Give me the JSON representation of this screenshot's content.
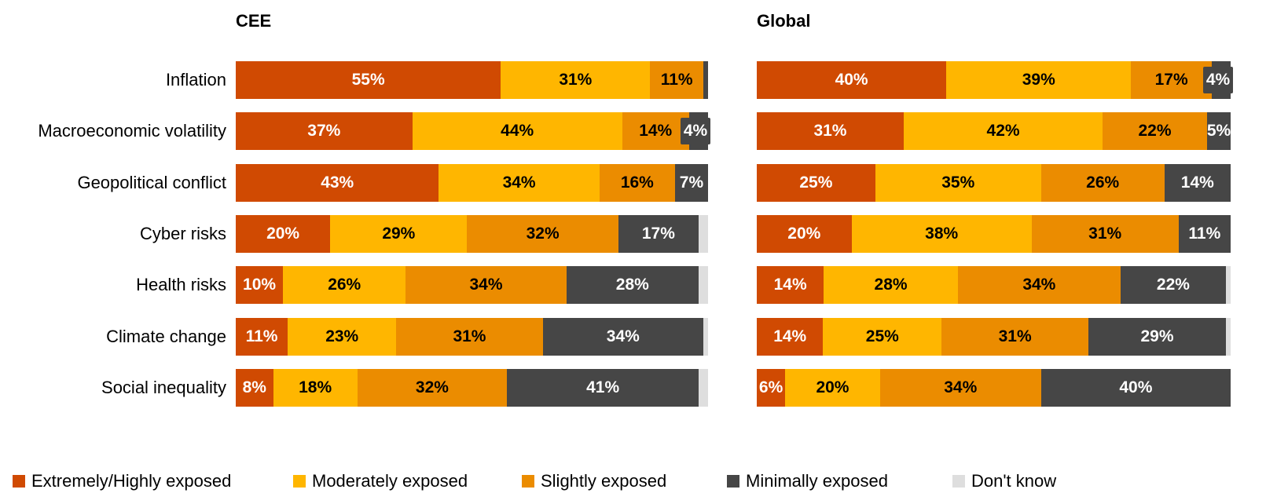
{
  "chart_data": [
    {
      "type": "bar",
      "orientation": "horizontal",
      "stacked": true,
      "title": "CEE",
      "categories": [
        "Inflation",
        "Macroeconomic volatility",
        "Geopolitical conflict",
        "Cyber risks",
        "Health risks",
        "Climate change",
        "Social inequality"
      ],
      "series": [
        {
          "name": "Extremely/Highly exposed",
          "values": [
            55,
            37,
            43,
            20,
            10,
            11,
            8
          ]
        },
        {
          "name": "Moderately exposed",
          "values": [
            31,
            44,
            34,
            29,
            26,
            23,
            18
          ]
        },
        {
          "name": "Slightly exposed",
          "values": [
            11,
            14,
            16,
            32,
            34,
            31,
            32
          ]
        },
        {
          "name": "Minimally exposed",
          "values": [
            1,
            4,
            7,
            17,
            28,
            34,
            41
          ]
        },
        {
          "name": "Don't know",
          "values": [
            0,
            0,
            0,
            2,
            2,
            1,
            2
          ]
        }
      ],
      "labels": [
        [
          "55%",
          "31%",
          "11%",
          "",
          ""
        ],
        [
          "37%",
          "44%",
          "14%",
          "4%",
          ""
        ],
        [
          "43%",
          "34%",
          "16%",
          "7%",
          ""
        ],
        [
          "20%",
          "29%",
          "32%",
          "17%",
          ""
        ],
        [
          "10%",
          "26%",
          "34%",
          "28%",
          ""
        ],
        [
          "11%",
          "23%",
          "31%",
          "34%",
          ""
        ],
        [
          "8%",
          "18%",
          "32%",
          "41%",
          ""
        ]
      ],
      "xlim": [
        0,
        100
      ],
      "grid": false
    },
    {
      "type": "bar",
      "orientation": "horizontal",
      "stacked": true,
      "title": "Global",
      "categories": [
        "Inflation",
        "Macroeconomic volatility",
        "Geopolitical conflict",
        "Cyber risks",
        "Health risks",
        "Climate change",
        "Social inequality"
      ],
      "series": [
        {
          "name": "Extremely/Highly exposed",
          "values": [
            40,
            31,
            25,
            20,
            14,
            14,
            6
          ]
        },
        {
          "name": "Moderately exposed",
          "values": [
            39,
            42,
            35,
            38,
            28,
            25,
            20
          ]
        },
        {
          "name": "Slightly exposed",
          "values": [
            17,
            22,
            26,
            31,
            34,
            31,
            34
          ]
        },
        {
          "name": "Minimally exposed",
          "values": [
            4,
            5,
            14,
            11,
            22,
            29,
            40
          ]
        },
        {
          "name": "Don't know",
          "values": [
            0,
            0,
            0,
            0,
            1,
            1,
            0
          ]
        }
      ],
      "labels": [
        [
          "40%",
          "39%",
          "17%",
          "4%",
          ""
        ],
        [
          "31%",
          "42%",
          "22%",
          "5%",
          ""
        ],
        [
          "25%",
          "35%",
          "26%",
          "14%",
          ""
        ],
        [
          "20%",
          "38%",
          "31%",
          "11%",
          ""
        ],
        [
          "14%",
          "28%",
          "34%",
          "22%",
          ""
        ],
        [
          "14%",
          "25%",
          "31%",
          "29%",
          ""
        ],
        [
          "6%",
          "20%",
          "34%",
          "40%",
          ""
        ]
      ],
      "xlim": [
        0,
        100
      ],
      "grid": false
    }
  ],
  "legend": {
    "placement": "bottom",
    "items": [
      {
        "label": "Extremely/Highly exposed",
        "color": "#D04A02"
      },
      {
        "label": "Moderately exposed",
        "color": "#FFB600"
      },
      {
        "label": "Slightly exposed",
        "color": "#EB8C00"
      },
      {
        "label": "Minimally exposed",
        "color": "#464646"
      },
      {
        "label": "Don't know",
        "color": "#DEDEDE"
      }
    ]
  },
  "colors": [
    "#D04A02",
    "#FFB600",
    "#EB8C00",
    "#464646",
    "#DEDEDE"
  ],
  "label_colors": [
    "#FFFFFF",
    "#000000",
    "#000000",
    "#FFFFFF",
    "#000000"
  ]
}
